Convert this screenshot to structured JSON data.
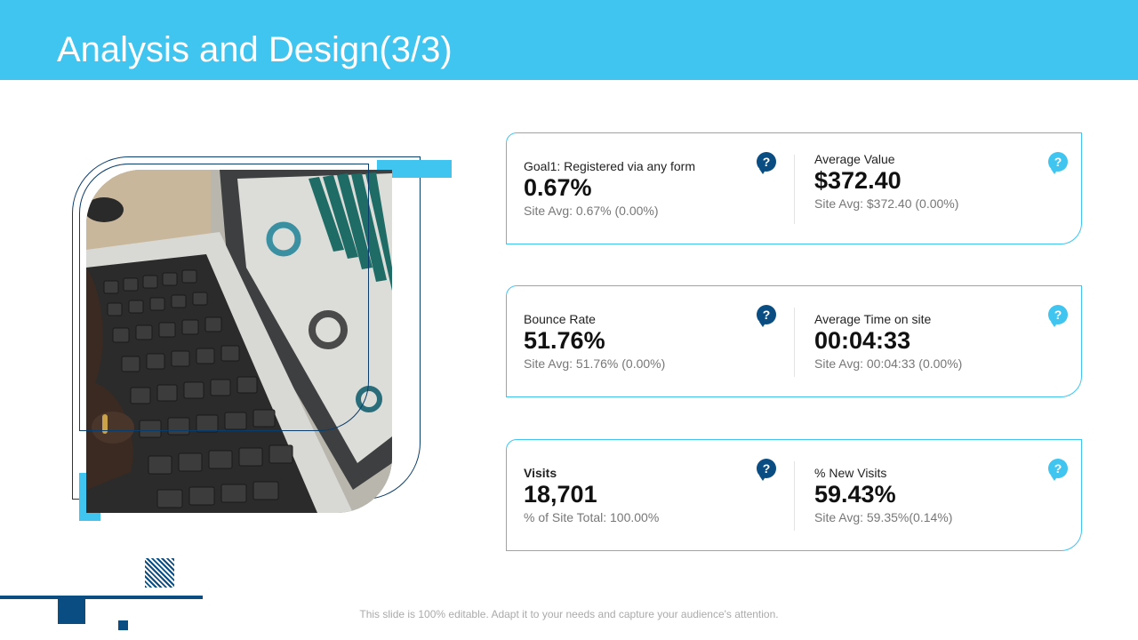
{
  "header": {
    "title": "Analysis and Design(3/3)"
  },
  "colors": {
    "accent": "#40c4f0",
    "dark_accent": "#0a4d82"
  },
  "metrics": [
    {
      "left": {
        "label": "Goal1: Registered via any form",
        "value": "0.67%",
        "sub": "Site Avg: 0.67% (0.00%)",
        "icon": "help-question-icon"
      },
      "right": {
        "label": "Average Value",
        "value": "$372.40",
        "sub": "Site Avg: $372.40 (0.00%)",
        "icon": "help-question-icon"
      }
    },
    {
      "left": {
        "label": "Bounce Rate",
        "value": "51.76%",
        "sub": "Site Avg: 51.76% (0.00%)",
        "icon": "help-question-icon"
      },
      "right": {
        "label": "Average Time on site",
        "value": "00:04:33",
        "sub": "Site Avg: 00:04:33 (0.00%)",
        "icon": "help-question-icon"
      }
    },
    {
      "left": {
        "label": "Visits",
        "value": "18,701",
        "sub": "% of Site Total: 100.00%",
        "icon": "help-question-icon"
      },
      "right": {
        "label": "% New Visits",
        "value": "59.43%",
        "sub": "Site Avg: 59.35%(0.14%)",
        "icon": "help-question-icon"
      }
    }
  ],
  "help_glyph": "?",
  "footer": {
    "text": "This slide is 100% editable. Adapt it to your needs and capture your audience's attention."
  }
}
